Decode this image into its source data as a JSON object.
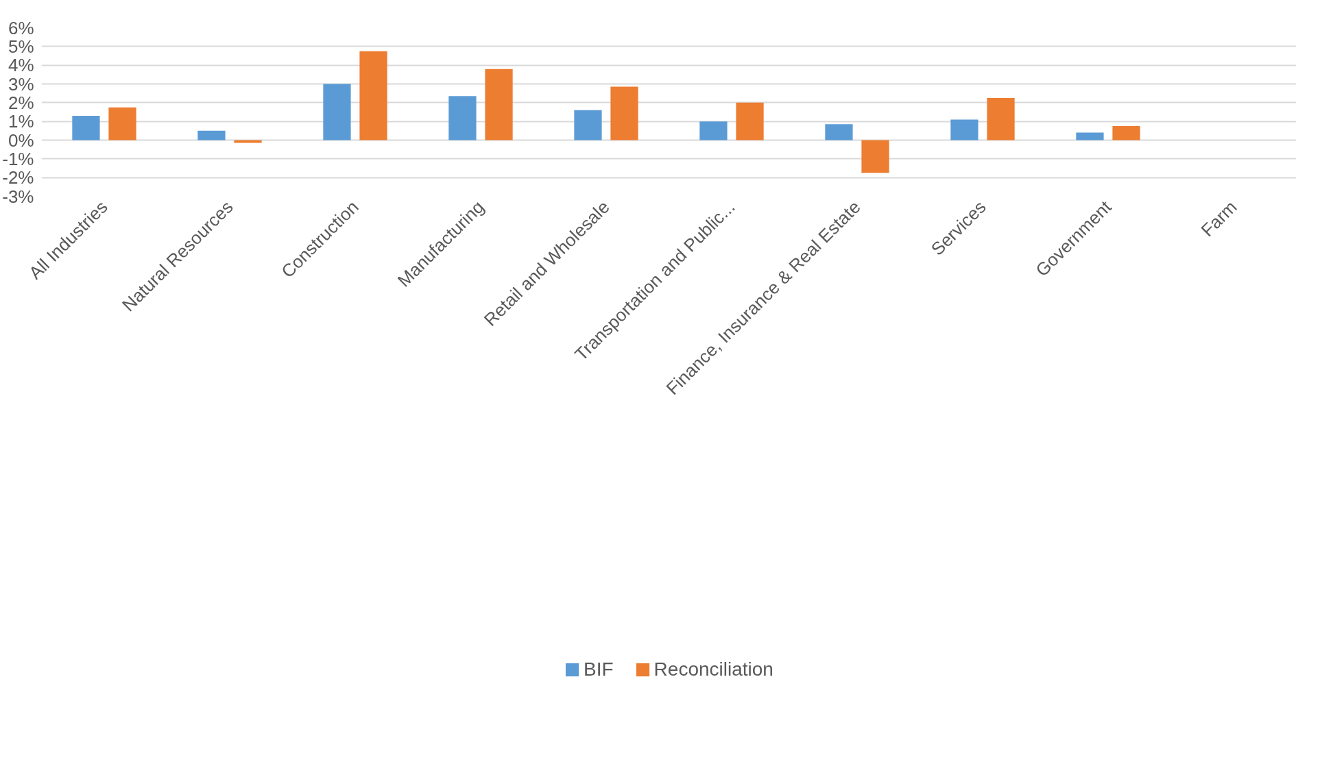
{
  "chart_data": {
    "type": "bar",
    "categories": [
      "All Industries",
      "Natural Resources",
      "Construction",
      "Manufacturing",
      "Retail and Wholesale",
      "Transportation and Public...",
      "Finance, Insurance & Real Estate",
      "Services",
      "Government",
      "Farm"
    ],
    "series": [
      {
        "name": "BIF",
        "color": "#5b9bd5",
        "values": [
          1.3,
          0.5,
          3.0,
          2.35,
          1.6,
          1.0,
          0.85,
          1.1,
          0.4,
          null
        ]
      },
      {
        "name": "Reconciliation",
        "color": "#ed7d31",
        "values": [
          1.75,
          -0.15,
          4.75,
          3.8,
          2.85,
          2.0,
          -1.75,
          2.25,
          0.75,
          null
        ]
      }
    ],
    "ylim": [
      -3,
      6
    ],
    "yticks": [
      {
        "value": -3,
        "label": "-3%"
      },
      {
        "value": -2,
        "label": "-2%"
      },
      {
        "value": -1,
        "label": "-1%"
      },
      {
        "value": 0,
        "label": "0%"
      },
      {
        "value": 1,
        "label": "1%"
      },
      {
        "value": 2,
        "label": "2%"
      },
      {
        "value": 3,
        "label": "3%"
      },
      {
        "value": 4,
        "label": "4%"
      },
      {
        "value": 5,
        "label": "5%"
      },
      {
        "value": 6,
        "label": "6%"
      }
    ],
    "grid": "y",
    "legend": "bottom"
  }
}
